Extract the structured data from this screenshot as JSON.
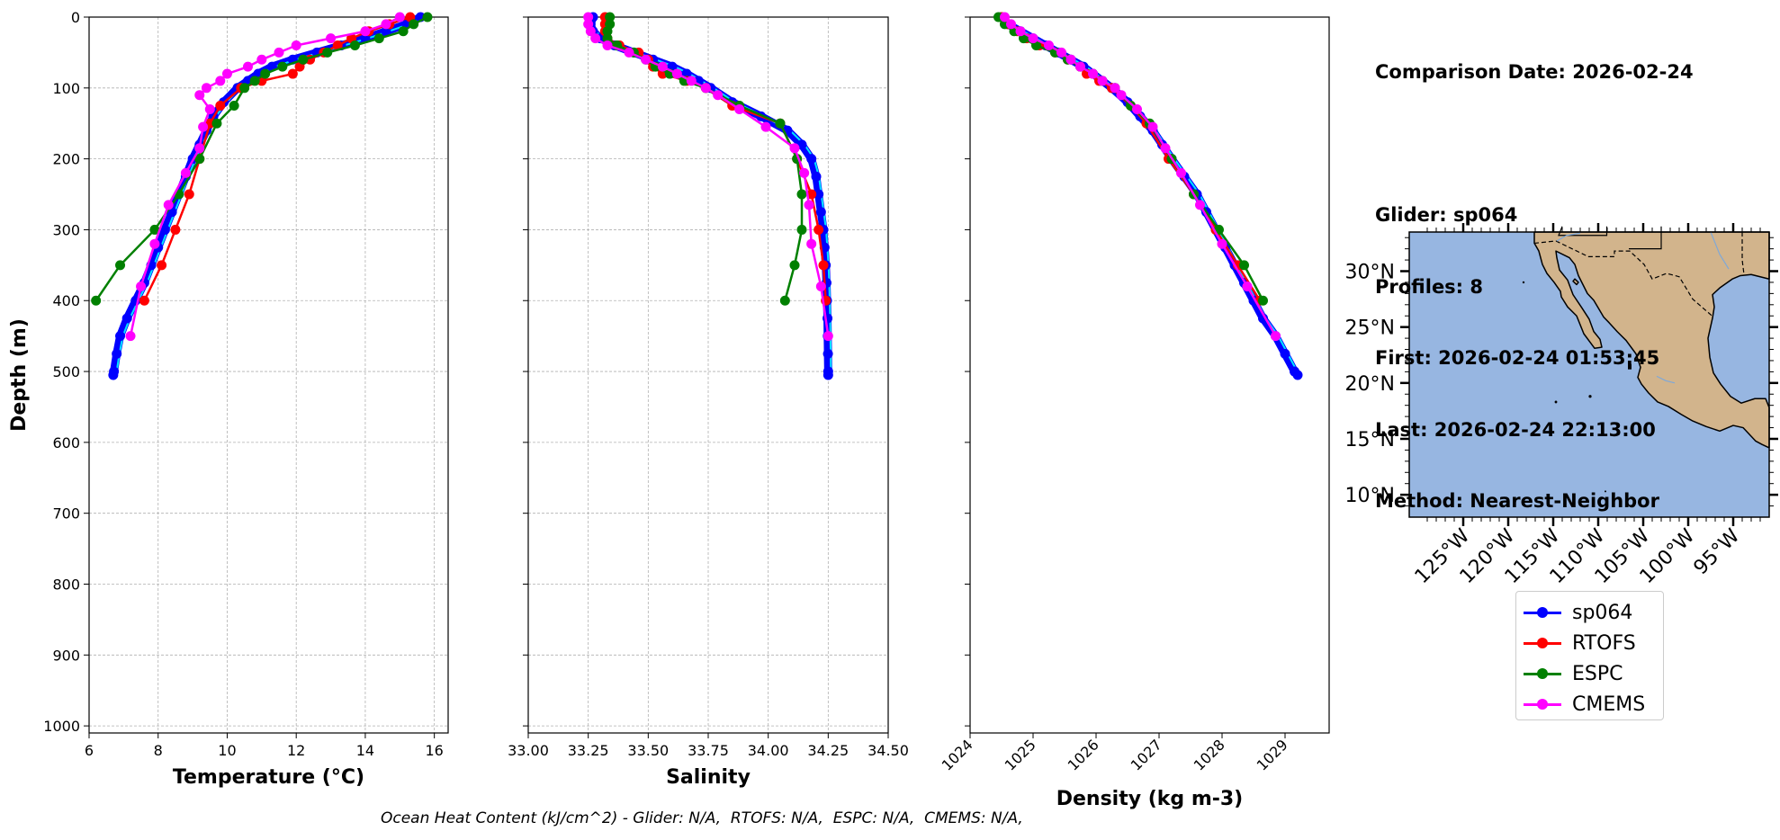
{
  "info": {
    "comparison": "Comparison Date: 2026-02-24",
    "glider": "Glider: sp064",
    "profiles": "Profiles: 8",
    "first": "First: 2026-02-24 01:53:45",
    "last": "Last: 2026-02-24 22:13:00",
    "method": "Method: Nearest-Neighbor"
  },
  "footer": "Ocean Heat Content (kJ/cm^2) - Glider: N/A,  RTOFS: N/A,  ESPC: N/A,  CMEMS: N/A,",
  "colors": {
    "sp064": "#0000ff",
    "sp064_profiles": "#00e5ff",
    "RTOFS": "#ff0000",
    "ESPC": "#008000",
    "CMEMS": "#ff00ff",
    "ocean": "#97b6e1",
    "land": "#d2b48c"
  },
  "legend": [
    {
      "label": "sp064",
      "color": "#0000ff"
    },
    {
      "label": "RTOFS",
      "color": "#ff0000"
    },
    {
      "label": "ESPC",
      "color": "#008000"
    },
    {
      "label": "CMEMS",
      "color": "#ff00ff"
    }
  ],
  "map": {
    "lat_ticks": [
      "30°N",
      "25°N",
      "20°N",
      "15°N",
      "10°N"
    ],
    "lon_ticks": [
      "125°W",
      "120°W",
      "115°W",
      "110°W",
      "105°W",
      "100°W",
      "95°W"
    ],
    "extent": {
      "lon": [
        -131,
        -91
      ],
      "lat": [
        8,
        33.5
      ]
    }
  },
  "chart_data": [
    {
      "type": "line",
      "xlabel": "Temperature (°C)",
      "ylabel": "Depth (m)",
      "xlim": [
        6,
        16.4
      ],
      "ylim": [
        1010,
        0
      ],
      "xticks": [
        6,
        8,
        10,
        12,
        14,
        16
      ],
      "yticks": [
        0,
        100,
        200,
        300,
        400,
        500,
        600,
        700,
        800,
        900,
        1000
      ],
      "grid": true,
      "series": [
        {
          "name": "sp064",
          "depth": [
            0,
            10,
            20,
            30,
            40,
            50,
            60,
            70,
            80,
            90,
            100,
            120,
            140,
            160,
            180,
            200,
            225,
            250,
            275,
            300,
            325,
            350,
            375,
            400,
            425,
            450,
            475,
            500,
            505
          ],
          "values": [
            15.6,
            15.2,
            14.6,
            14.0,
            13.3,
            12.6,
            11.9,
            11.3,
            10.9,
            10.6,
            10.3,
            9.9,
            9.6,
            9.4,
            9.2,
            9.0,
            8.8,
            8.6,
            8.4,
            8.2,
            8.0,
            7.8,
            7.6,
            7.35,
            7.1,
            6.9,
            6.8,
            6.72,
            6.7
          ]
        },
        {
          "name": "RTOFS",
          "depth": [
            0,
            10,
            20,
            30,
            40,
            50,
            60,
            70,
            80,
            90,
            100,
            125,
            150,
            200,
            250,
            300,
            350,
            400
          ],
          "values": [
            15.3,
            14.7,
            14.1,
            13.6,
            13.2,
            12.8,
            12.4,
            12.1,
            11.9,
            11.0,
            10.4,
            9.8,
            9.5,
            9.2,
            8.9,
            8.5,
            8.1,
            7.6
          ]
        },
        {
          "name": "ESPC",
          "depth": [
            0,
            10,
            20,
            30,
            40,
            50,
            60,
            70,
            80,
            90,
            100,
            125,
            150,
            200,
            250,
            300,
            350,
            400
          ],
          "values": [
            15.8,
            15.4,
            15.1,
            14.4,
            13.7,
            12.9,
            12.2,
            11.6,
            11.1,
            10.8,
            10.5,
            10.2,
            9.7,
            9.2,
            8.6,
            7.9,
            6.9,
            6.2
          ]
        },
        {
          "name": "CMEMS",
          "depth": [
            0,
            10,
            20,
            30,
            40,
            50,
            60,
            70,
            80,
            90,
            100,
            110,
            130,
            155,
            185,
            220,
            265,
            320,
            380,
            450
          ],
          "values": [
            15.0,
            14.6,
            14.0,
            13.0,
            12.0,
            11.5,
            11.0,
            10.6,
            10.0,
            9.8,
            9.4,
            9.2,
            9.5,
            9.3,
            9.2,
            8.8,
            8.3,
            7.9,
            7.5,
            7.2
          ]
        }
      ]
    },
    {
      "type": "line",
      "xlabel": "Salinity",
      "ylabel": "",
      "xlim": [
        33.0,
        34.5
      ],
      "ylim": [
        1010,
        0
      ],
      "xticks": [
        33.0,
        33.25,
        33.5,
        33.75,
        34.0,
        34.25,
        34.5
      ],
      "xtick_labels": [
        "33.00",
        "33.25",
        "33.50",
        "33.75",
        "34.00",
        "34.25",
        "34.50"
      ],
      "grid": true,
      "series": [
        {
          "name": "sp064",
          "depth": [
            0,
            10,
            20,
            30,
            40,
            50,
            60,
            70,
            80,
            90,
            100,
            120,
            140,
            160,
            180,
            200,
            225,
            250,
            275,
            300,
            325,
            350,
            375,
            400,
            425,
            450,
            475,
            500,
            505
          ],
          "values": [
            33.27,
            33.26,
            33.27,
            33.3,
            33.36,
            33.44,
            33.52,
            33.6,
            33.66,
            33.71,
            33.76,
            33.85,
            33.97,
            34.08,
            34.14,
            34.18,
            34.2,
            34.21,
            34.22,
            34.23,
            34.235,
            34.24,
            34.243,
            34.245,
            34.247,
            34.248,
            34.249,
            34.25,
            34.25
          ]
        },
        {
          "name": "RTOFS",
          "depth": [
            0,
            10,
            20,
            30,
            40,
            50,
            60,
            70,
            80,
            90,
            100,
            125,
            150,
            200,
            250,
            300,
            350,
            400
          ],
          "values": [
            33.32,
            33.32,
            33.32,
            33.33,
            33.38,
            33.46,
            33.5,
            33.52,
            33.56,
            33.66,
            33.74,
            33.85,
            34.05,
            34.12,
            34.18,
            34.21,
            34.23,
            34.24
          ]
        },
        {
          "name": "ESPC",
          "depth": [
            0,
            10,
            20,
            30,
            40,
            50,
            60,
            70,
            80,
            90,
            100,
            125,
            150,
            200,
            250,
            300,
            350,
            400
          ],
          "values": [
            33.34,
            33.34,
            33.33,
            33.33,
            33.37,
            33.44,
            33.49,
            33.53,
            33.59,
            33.65,
            33.74,
            33.88,
            34.05,
            34.12,
            34.14,
            34.14,
            34.11,
            34.07
          ]
        },
        {
          "name": "CMEMS",
          "depth": [
            0,
            10,
            20,
            30,
            40,
            50,
            60,
            70,
            80,
            90,
            100,
            110,
            130,
            155,
            185,
            220,
            265,
            320,
            380,
            450
          ],
          "values": [
            33.25,
            33.25,
            33.26,
            33.28,
            33.33,
            33.42,
            33.49,
            33.56,
            33.62,
            33.68,
            33.74,
            33.79,
            33.88,
            33.99,
            34.11,
            34.15,
            34.17,
            34.18,
            34.22,
            34.25
          ]
        }
      ]
    },
    {
      "type": "line",
      "xlabel": "Density (kg m-3)",
      "ylabel": "",
      "xlim": [
        1024,
        1029.7
      ],
      "ylim": [
        1010,
        0
      ],
      "xticks": [
        1024,
        1025,
        1026,
        1027,
        1028,
        1029
      ],
      "grid": false,
      "series": [
        {
          "name": "sp064",
          "depth": [
            0,
            10,
            20,
            30,
            40,
            50,
            60,
            70,
            80,
            90,
            100,
            120,
            140,
            160,
            180,
            200,
            225,
            250,
            275,
            300,
            325,
            350,
            375,
            400,
            425,
            450,
            475,
            500,
            505
          ],
          "values": [
            1024.5,
            1024.6,
            1024.8,
            1025.0,
            1025.2,
            1025.4,
            1025.6,
            1025.8,
            1025.95,
            1026.1,
            1026.25,
            1026.5,
            1026.7,
            1026.9,
            1027.05,
            1027.2,
            1027.4,
            1027.6,
            1027.75,
            1027.9,
            1028.05,
            1028.2,
            1028.35,
            1028.5,
            1028.65,
            1028.85,
            1029.0,
            1029.15,
            1029.2
          ]
        },
        {
          "name": "RTOFS",
          "depth": [
            0,
            10,
            20,
            30,
            40,
            50,
            60,
            70,
            80,
            90,
            100,
            125,
            150,
            200,
            250,
            300,
            350,
            400
          ],
          "values": [
            1024.5,
            1024.6,
            1024.75,
            1024.9,
            1025.1,
            1025.35,
            1025.55,
            1025.75,
            1025.85,
            1026.05,
            1026.25,
            1026.55,
            1026.8,
            1027.15,
            1027.55,
            1027.9,
            1028.25,
            1028.6
          ]
        },
        {
          "name": "ESPC",
          "depth": [
            0,
            10,
            20,
            30,
            40,
            50,
            60,
            70,
            80,
            90,
            100,
            125,
            150,
            200,
            250,
            300,
            350,
            400
          ],
          "values": [
            1024.45,
            1024.55,
            1024.7,
            1024.85,
            1025.05,
            1025.35,
            1025.55,
            1025.75,
            1025.95,
            1026.1,
            1026.3,
            1026.55,
            1026.85,
            1027.2,
            1027.55,
            1027.95,
            1028.35,
            1028.65
          ]
        },
        {
          "name": "CMEMS",
          "depth": [
            0,
            10,
            20,
            30,
            40,
            50,
            60,
            70,
            80,
            90,
            100,
            110,
            130,
            155,
            185,
            220,
            265,
            320,
            380,
            450
          ],
          "values": [
            1024.55,
            1024.65,
            1024.8,
            1025.0,
            1025.25,
            1025.45,
            1025.6,
            1025.75,
            1025.95,
            1026.1,
            1026.3,
            1026.4,
            1026.65,
            1026.9,
            1027.1,
            1027.35,
            1027.65,
            1028.0,
            1028.4,
            1028.85
          ]
        }
      ]
    }
  ]
}
